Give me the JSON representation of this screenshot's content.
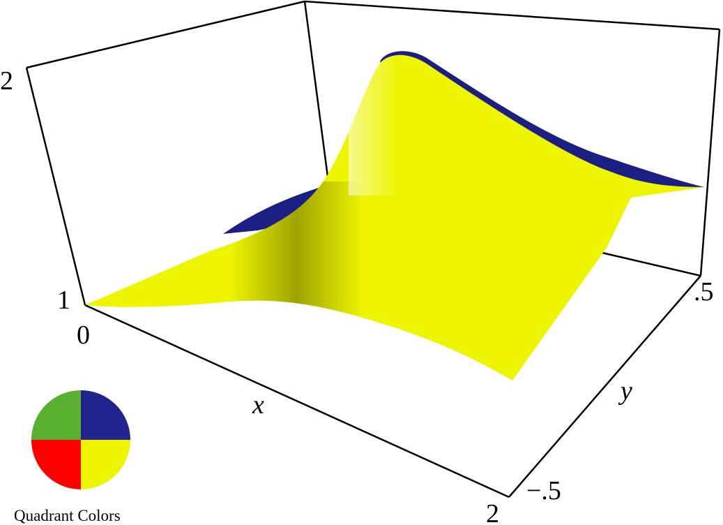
{
  "chart_data": {
    "type": "surface-3d",
    "axes": {
      "x": {
        "label": "x",
        "ticks": [
          "0",
          "2"
        ],
        "range": [
          0,
          2
        ]
      },
      "y": {
        "label": "y",
        "ticks": [
          "−.5",
          ".5"
        ],
        "range": [
          -0.5,
          0.5
        ]
      },
      "z": {
        "label": "",
        "ticks": [
          "1",
          "2"
        ],
        "range": [
          1,
          2
        ]
      }
    },
    "surface_colors": {
      "top": "#EDF500",
      "underside": "#1B1E82"
    },
    "legend": {
      "title": "Quadrant Colors",
      "quadrants": [
        {
          "quadrant": "upper-left",
          "color": "#58B02E"
        },
        {
          "quadrant": "upper-right",
          "color": "#23238E"
        },
        {
          "quadrant": "lower-left",
          "color": "#FF0000"
        },
        {
          "quadrant": "lower-right",
          "color": "#EDF500"
        }
      ]
    }
  }
}
